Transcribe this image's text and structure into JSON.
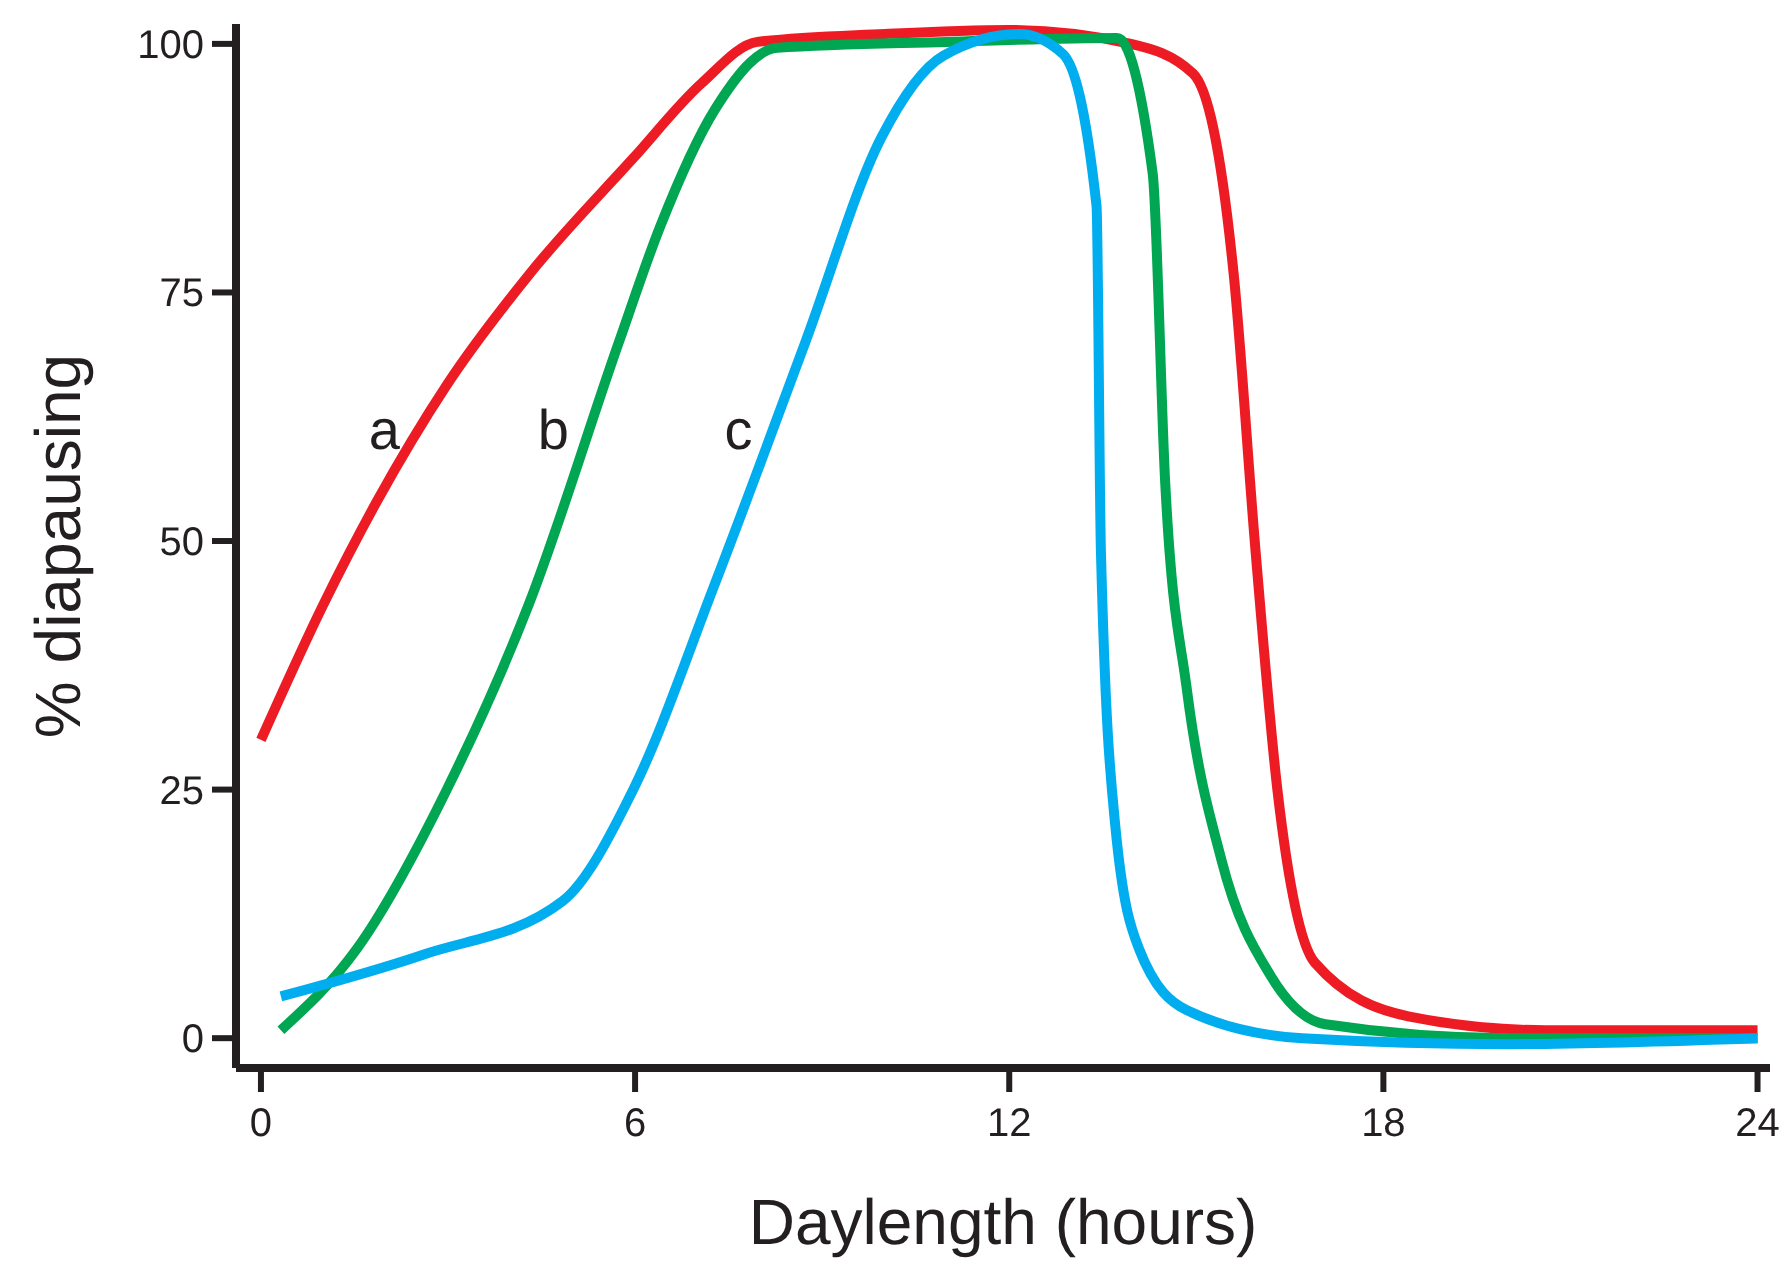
{
  "chart_data": {
    "type": "line",
    "xlabel": "Daylength (hours)",
    "ylabel": "% diapausing",
    "xlim": [
      -0.4,
      24.2
    ],
    "ylim": [
      -3,
      102
    ],
    "xticks": [
      0,
      6,
      12,
      18,
      24
    ],
    "yticks": [
      0,
      25,
      50,
      75,
      100
    ],
    "grid": false,
    "marker": "none",
    "line_style": "solid",
    "series": [
      {
        "name": "a",
        "color": "#ed1c24",
        "x": [
          0,
          1,
          1.86,
          2.98,
          4.3,
          5.97,
          7.06,
          7.96,
          10,
          12,
          13.95,
          14.95,
          15.6,
          15.95,
          16.3,
          16.9,
          18.4,
          20.6,
          24
        ],
        "values": [
          30,
          43.6,
          54,
          65.7,
          76.8,
          88.5,
          96,
          100.2,
          101,
          101.4,
          100,
          97,
          76.8,
          49,
          25,
          7.6,
          2.2,
          0.8,
          0.8
        ]
      },
      {
        "name": "b",
        "color": "#00a651",
        "x": [
          0.32,
          1.54,
          2.98,
          4.3,
          5.74,
          6.4,
          7.28,
          8.28,
          11,
          13.73,
          14.3,
          14.5,
          14.85,
          15.4,
          16.2,
          17.07,
          20,
          24
        ],
        "values": [
          0.8,
          9,
          25,
          43.7,
          70,
          81.6,
          93.4,
          99.6,
          100.2,
          100.6,
          87,
          56,
          35,
          18,
          6.2,
          1.4,
          0,
          0
        ]
      },
      {
        "name": "c",
        "color": "#00aeef",
        "x": [
          0.32,
          2.6,
          4.84,
          5.97,
          7.28,
          8.73,
          9.95,
          10.94,
          12.16,
          12.86,
          13.4,
          13.47,
          13.7,
          14.08,
          14.85,
          16.7,
          20,
          24
        ],
        "values": [
          4.2,
          8.4,
          13.8,
          25,
          45.7,
          70,
          90.6,
          98.8,
          101,
          99,
          83.7,
          49,
          21.4,
          9,
          2.8,
          0,
          -0.6,
          0
        ]
      }
    ]
  }
}
